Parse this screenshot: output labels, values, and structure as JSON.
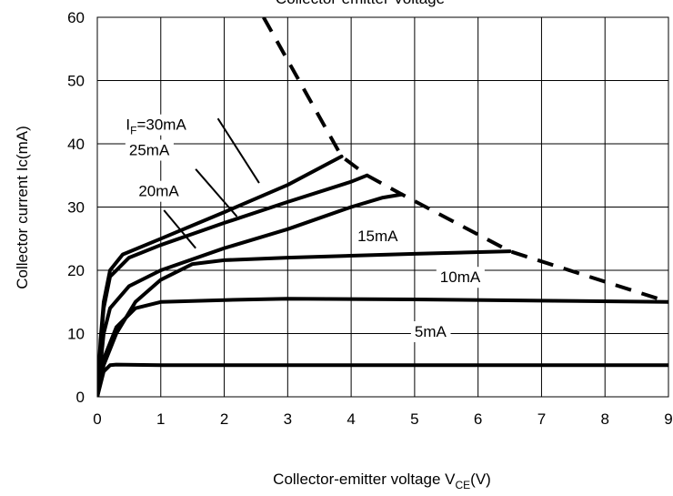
{
  "chart_data": {
    "type": "line",
    "title": "Collector-emitter Voltage",
    "xlabel_main": "Collector-emitter voltage V",
    "xlabel_sub": "CE",
    "xlabel_tail": "(V)",
    "ylabel": "Collector  current Ic(mA)",
    "xlim": [
      0,
      9
    ],
    "ylim": [
      0,
      60
    ],
    "xticks": [
      0,
      1,
      2,
      3,
      4,
      5,
      6,
      7,
      8,
      9
    ],
    "yticks": [
      0,
      10,
      20,
      30,
      40,
      50,
      60
    ],
    "grid": true,
    "series": [
      {
        "label": "5mA",
        "label_main": "5mA",
        "label_sub": "",
        "label_tail": "",
        "points": [
          [
            0,
            0
          ],
          [
            0.1,
            4
          ],
          [
            0.2,
            5
          ],
          [
            0.3,
            5.1
          ],
          [
            1,
            5
          ],
          [
            2,
            5
          ],
          [
            4,
            5
          ],
          [
            6,
            5
          ],
          [
            9,
            5
          ]
        ],
        "label_pos": [
          5.0,
          9.5
        ],
        "leader": null
      },
      {
        "label": "10mA",
        "label_main": "10mA",
        "label_sub": "",
        "label_tail": "",
        "points": [
          [
            0,
            0
          ],
          [
            0.1,
            6
          ],
          [
            0.3,
            11
          ],
          [
            0.6,
            14
          ],
          [
            1,
            15
          ],
          [
            2,
            15.3
          ],
          [
            3,
            15.5
          ],
          [
            5,
            15.4
          ],
          [
            7,
            15.2
          ],
          [
            9,
            15
          ]
        ],
        "label_pos": [
          5.4,
          18.1
        ],
        "leader": null
      },
      {
        "label": "15mA",
        "label_main": "15mA",
        "label_sub": "",
        "label_tail": "",
        "points": [
          [
            0,
            0
          ],
          [
            0.1,
            5
          ],
          [
            0.3,
            10
          ],
          [
            0.6,
            15
          ],
          [
            1,
            18.5
          ],
          [
            1.5,
            21
          ],
          [
            2,
            21.6
          ],
          [
            3,
            22
          ],
          [
            5,
            22.6
          ],
          [
            6.5,
            23
          ]
        ],
        "label_pos": [
          4.1,
          24.6
        ],
        "leader": null
      },
      {
        "label": "20mA",
        "label_main": "20mA",
        "label_sub": "",
        "label_tail": "",
        "points": [
          [
            0,
            0
          ],
          [
            0.05,
            5
          ],
          [
            0.1,
            10
          ],
          [
            0.2,
            14
          ],
          [
            0.5,
            17.5
          ],
          [
            1,
            20
          ],
          [
            2,
            23.5
          ],
          [
            3,
            26.5
          ],
          [
            4,
            30
          ],
          [
            4.5,
            31.5
          ],
          [
            4.8,
            32
          ]
        ],
        "label_pos": [
          0.65,
          31.7
        ],
        "leader": [
          [
            1.05,
            29.5
          ],
          [
            1.55,
            23.5
          ]
        ]
      },
      {
        "label": "25mA",
        "label_main": "25mA",
        "label_sub": "",
        "label_tail": "",
        "points": [
          [
            0,
            0
          ],
          [
            0.05,
            8
          ],
          [
            0.1,
            14
          ],
          [
            0.2,
            19
          ],
          [
            0.5,
            22
          ],
          [
            1,
            24
          ],
          [
            2,
            27.5
          ],
          [
            3,
            30.8
          ],
          [
            4,
            34
          ],
          [
            4.25,
            35
          ]
        ],
        "label_pos": [
          0.5,
          38.2
        ],
        "leader": [
          [
            1.55,
            36
          ],
          [
            2.2,
            28.5
          ]
        ]
      },
      {
        "label": "IF=30mA",
        "label_main": "I",
        "label_sub": "F",
        "label_tail": "=30mA",
        "points": [
          [
            0,
            0
          ],
          [
            0.05,
            9
          ],
          [
            0.1,
            15
          ],
          [
            0.2,
            20
          ],
          [
            0.4,
            22.5
          ],
          [
            1,
            25
          ],
          [
            2,
            29.2
          ],
          [
            3,
            33.5
          ],
          [
            3.85,
            38
          ]
        ],
        "label_pos": [
          0.45,
          42.2
        ],
        "leader": [
          [
            1.9,
            44
          ],
          [
            2.55,
            33.8
          ]
        ]
      }
    ],
    "boundary": {
      "style": "dashed",
      "points": [
        [
          2.62,
          60
        ],
        [
          3.85,
          38
        ],
        [
          4.25,
          35
        ],
        [
          4.8,
          32
        ],
        [
          6.5,
          23
        ],
        [
          9,
          15
        ]
      ]
    }
  }
}
